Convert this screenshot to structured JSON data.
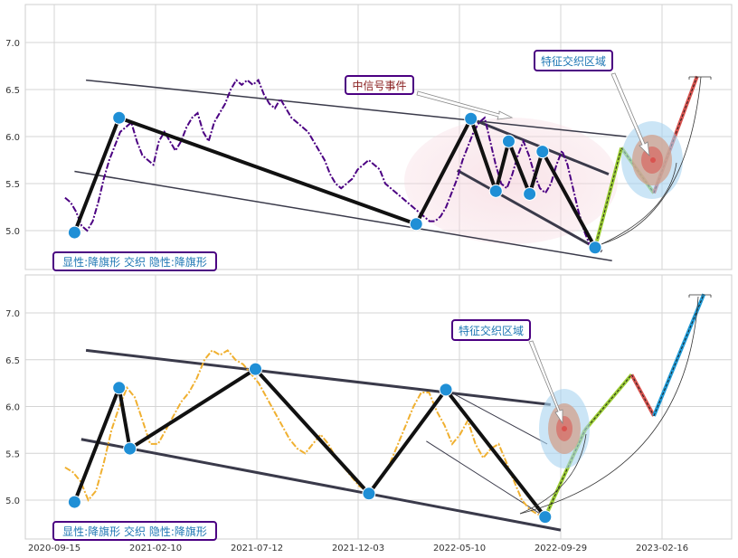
{
  "chart_data": [
    {
      "type": "line",
      "ylim": [
        4.6,
        7.4
      ],
      "yticks": [
        "5.0",
        "5.5",
        "6.0",
        "6.5",
        "7.0"
      ],
      "grid": true,
      "price_color": "#4b0082",
      "price_style": "dash-dot",
      "series": [
        {
          "values": [
            5.35,
            5.3,
            5.2,
            5.05,
            5.0,
            5.1,
            5.3,
            5.55,
            5.75,
            5.9,
            6.05,
            6.1,
            6.15,
            5.95,
            5.8,
            5.75,
            5.7,
            5.95,
            6.05,
            5.95,
            5.85,
            5.95,
            6.1,
            6.2,
            6.25,
            6.05,
            5.95,
            6.15,
            6.25,
            6.35,
            6.5,
            6.6,
            6.55,
            6.6,
            6.55,
            6.6,
            6.45,
            6.35,
            6.3,
            6.4,
            6.3,
            6.2,
            6.15,
            6.1,
            6.05,
            5.95,
            5.85,
            5.75,
            5.6,
            5.5,
            5.45,
            5.5,
            5.55,
            5.65,
            5.7,
            5.75,
            5.7,
            5.65,
            5.5,
            5.45,
            5.4,
            5.35,
            5.3,
            5.25,
            5.2,
            5.15,
            5.1,
            5.1,
            5.15,
            5.25,
            5.4,
            5.55,
            5.75,
            5.9,
            6.05,
            6.15,
            6.2,
            5.95,
            5.7,
            5.5,
            5.45,
            5.6,
            5.8,
            5.95,
            5.8,
            5.6,
            5.45,
            5.4,
            5.5,
            5.7,
            5.85,
            5.7,
            5.45,
            5.2,
            5.0,
            4.85,
            4.82
          ]
        }
      ],
      "pivots": [
        {
          "label": "2020-10-15",
          "y": 4.98
        },
        {
          "label": "2020-12-20",
          "y": 6.2
        },
        {
          "label": "2022-03-05",
          "y": 5.07
        },
        {
          "label": "2022-05-25",
          "y": 6.19
        },
        {
          "label": "2022-07-01",
          "y": 5.42
        },
        {
          "label": "2022-07-20",
          "y": 5.95
        },
        {
          "label": "2022-08-20",
          "y": 5.39
        },
        {
          "label": "2022-09-08",
          "y": 5.84
        },
        {
          "label": "2022-11-25",
          "y": 4.82
        }
      ],
      "forecast": [
        {
          "label": "2022-11-25",
          "y": 4.82,
          "color": "#9acd32"
        },
        {
          "label": "2023-01-03",
          "y": 5.88,
          "color": "#9acd32"
        },
        {
          "label": "2023-02-20",
          "y": 5.4,
          "color": "#d9534f"
        },
        {
          "label": "2023-04-25",
          "y": 6.64,
          "color": "#1f9bd7"
        }
      ],
      "annotations": [
        {
          "text": "中信号事件",
          "color": "#8b2222",
          "border": "#4b0082"
        },
        {
          "text": "特征交织区域",
          "color": "#1f77b4",
          "border": "#4b0082"
        },
        {
          "text": "显性:降旗形 交织 隐性:降旗形",
          "color": "#1f77b4",
          "border": "#4b0082"
        }
      ]
    },
    {
      "type": "line",
      "ylim": [
        4.6,
        7.4
      ],
      "yticks": [
        "5.0",
        "5.5",
        "6.0",
        "6.5",
        "7.0"
      ],
      "grid": true,
      "price_color": "#f0b030",
      "price_style": "dash-dot",
      "series": [
        {
          "values": [
            5.35,
            5.3,
            5.2,
            5.0,
            5.1,
            5.4,
            5.75,
            6.0,
            6.2,
            6.1,
            5.85,
            5.6,
            5.6,
            5.75,
            5.9,
            6.05,
            6.15,
            6.3,
            6.5,
            6.6,
            6.55,
            6.6,
            6.5,
            6.45,
            6.35,
            6.25,
            6.1,
            5.95,
            5.8,
            5.65,
            5.55,
            5.5,
            5.6,
            5.7,
            5.6,
            5.45,
            5.35,
            5.25,
            5.15,
            5.1,
            5.15,
            5.25,
            5.4,
            5.6,
            5.8,
            6.0,
            6.15,
            6.15,
            5.95,
            5.8,
            5.6,
            5.7,
            5.85,
            5.6,
            5.45,
            5.55,
            5.6,
            5.4,
            5.2,
            5.0,
            4.9,
            4.85,
            4.82
          ]
        }
      ],
      "pivots": [
        {
          "label": "2020-10-15",
          "y": 4.98
        },
        {
          "label": "2020-12-20",
          "y": 6.2
        },
        {
          "label": "2021-01-05",
          "y": 5.55
        },
        {
          "label": "2021-07-10",
          "y": 6.4
        },
        {
          "label": "2021-12-25",
          "y": 5.07
        },
        {
          "label": "2022-04-18",
          "y": 6.18
        },
        {
          "label": "2022-09-12",
          "y": 4.82
        }
      ],
      "forecast": [
        {
          "label": "2022-09-12",
          "y": 4.82,
          "color": "#9acd32"
        },
        {
          "label": "2022-11-10",
          "y": 5.75,
          "color": "#9acd32"
        },
        {
          "label": "2023-01-18",
          "y": 6.34,
          "color": "#d9534f"
        },
        {
          "label": "2023-02-20",
          "y": 5.9,
          "color": "#1f9bd7"
        },
        {
          "label": "2023-05-05",
          "y": 7.2,
          "color": "#1f9bd7"
        }
      ],
      "xticks": [
        "2020-09-15",
        "2021-02-10",
        "2021-07-12",
        "2021-12-03",
        "2022-05-10",
        "2022-09-29",
        "2023-02-16"
      ],
      "annotations": [
        {
          "text": "特征交织区域",
          "color": "#1f77b4",
          "border": "#4b0082"
        },
        {
          "text": "显性:降旗形 交织 隐性:降旗形",
          "color": "#1f77b4",
          "border": "#4b0082"
        }
      ]
    }
  ]
}
